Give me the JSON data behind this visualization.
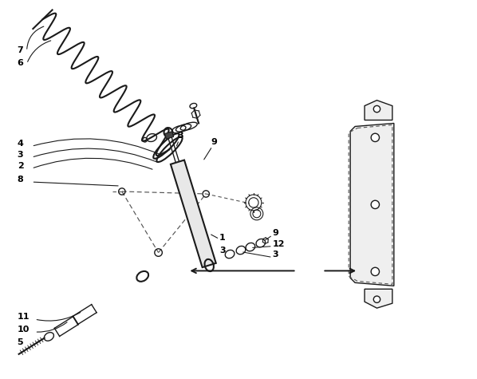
{
  "bg_color": "#ffffff",
  "line_color": "#1a1a1a",
  "dash_color": "#555555",
  "fig_width": 5.98,
  "fig_height": 4.75,
  "dpi": 100
}
